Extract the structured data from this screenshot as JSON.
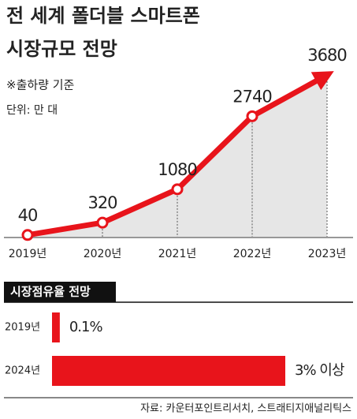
{
  "chart_data": [
    {
      "type": "line",
      "title": "전 세계 폴더블 스마트폰",
      "subtitle": "시장규모 전망",
      "note": "※출하량 기준",
      "unit": "단위: 만 대",
      "categories": [
        "2019년",
        "2020년",
        "2021년",
        "2022년",
        "2023년"
      ],
      "values": [
        40,
        320,
        1080,
        2740,
        3680
      ],
      "color": "#e8141b"
    },
    {
      "type": "bar",
      "title": "시장점유율 전망",
      "categories": [
        "2019년",
        "2024년"
      ],
      "values": [
        0.1,
        3
      ],
      "value_labels": [
        "0.1%",
        "3% 이상"
      ],
      "color": "#e8141b",
      "source": "자료: 카운터포인트리서치, 스트래티지애널리틱스"
    }
  ]
}
